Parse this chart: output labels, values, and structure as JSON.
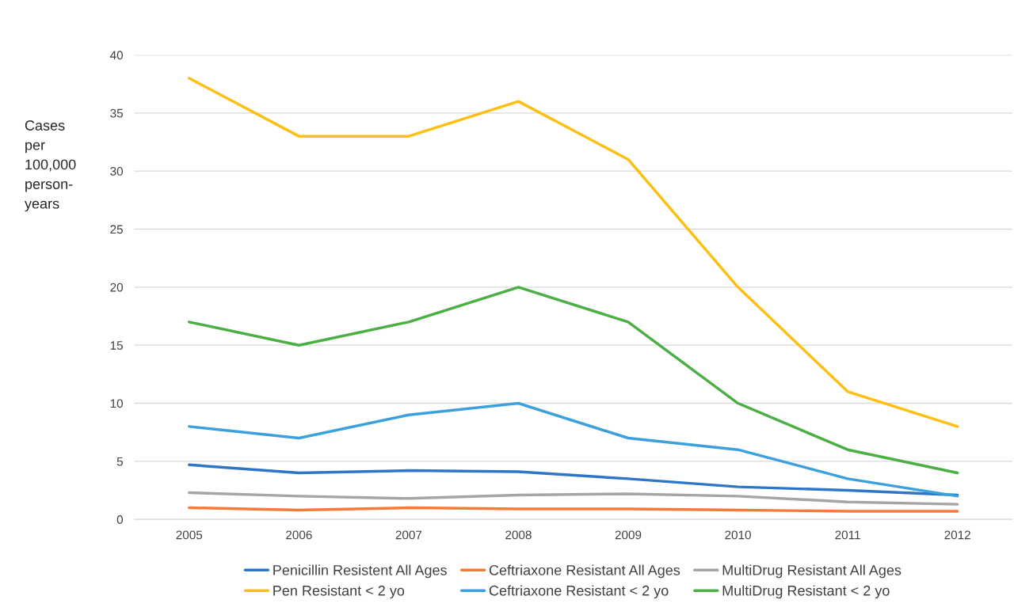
{
  "chart_data": {
    "type": "line",
    "ylabel": "Cases\nper\n100,000\nperson-\nyears",
    "x": [
      2005,
      2006,
      2007,
      2008,
      2009,
      2010,
      2011,
      2012
    ],
    "xlim": [
      2004.5,
      2012.5
    ],
    "xticks": [
      2005,
      2006,
      2007,
      2008,
      2009,
      2010,
      2011,
      2012
    ],
    "ylim": [
      0,
      40
    ],
    "yticks": [
      0,
      5,
      10,
      15,
      20,
      25,
      30,
      35,
      40
    ],
    "grid": "y",
    "legend": "bottom",
    "marker": "none",
    "line_style": "solid",
    "series": [
      {
        "name": "Penicillin Resistent All Ages",
        "color": "#2e75c8",
        "values": [
          4.7,
          4.0,
          4.2,
          4.1,
          3.5,
          2.8,
          2.5,
          2.1
        ]
      },
      {
        "name": "Ceftriaxone Resistant All Ages",
        "color": "#f47b3b",
        "values": [
          1.0,
          0.8,
          1.0,
          0.9,
          0.9,
          0.8,
          0.7,
          0.7
        ]
      },
      {
        "name": "MultiDrug Resistant All Ages",
        "color": "#a5a5a5",
        "values": [
          2.3,
          2.0,
          1.8,
          2.1,
          2.2,
          2.0,
          1.5,
          1.3
        ]
      },
      {
        "name": "Pen Resistant < 2 yo",
        "color": "#fdbf12",
        "values": [
          38,
          33,
          33,
          36,
          31,
          20,
          11,
          8
        ]
      },
      {
        "name": "Ceftriaxone Resistant < 2 yo",
        "color": "#3ca0dc",
        "values": [
          8,
          7,
          9,
          10,
          7,
          6,
          3.5,
          2.0
        ]
      },
      {
        "name": "MultiDrug Resistant < 2 yo",
        "color": "#4caf45",
        "values": [
          17,
          15,
          17,
          20,
          17,
          10,
          6,
          4
        ]
      }
    ]
  }
}
